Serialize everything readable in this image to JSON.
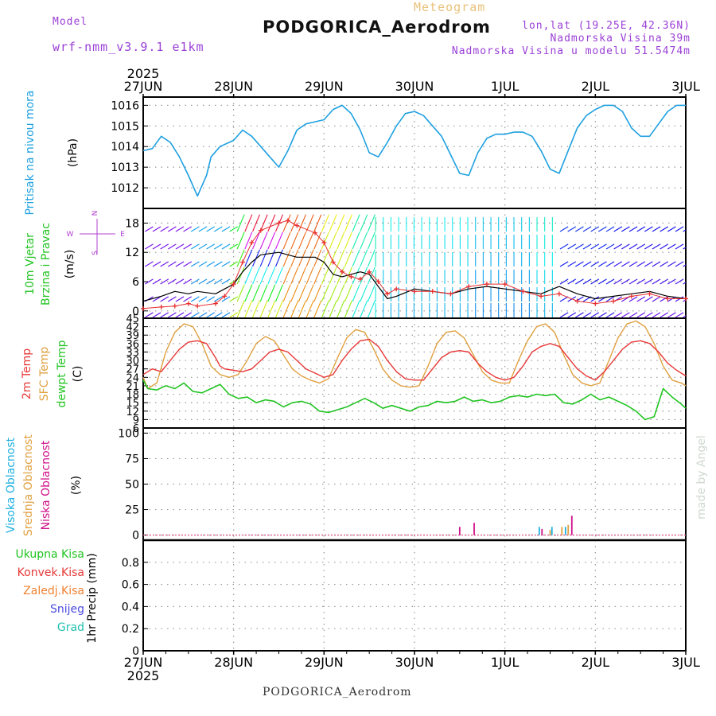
{
  "header": {
    "model_label": "Model",
    "model_value": "wrf-nmm_v3.9.1 e1km",
    "meteogram_label": "Meteogram",
    "station_title": "PODGORICA_Aerodrom",
    "lonlat": "lon,lat (19.25E, 42.36N)",
    "elevation": "Nadmorska Visina 39m",
    "model_elevation": "Nadmorska Visina u modelu 51.5474m",
    "year": "2025",
    "footer": "PODGORICA_Aerodrom",
    "watermark": "made by Angel"
  },
  "colors": {
    "pressure": "#1ea0e0",
    "wind_speed": "#000000",
    "gust": "#e83030",
    "t2m": "#e83838",
    "sfc": "#e0a040",
    "dewpt": "#22c422",
    "clouds_high": "#1eb0e0",
    "clouds_mid": "#e0a040",
    "clouds_low": "#d0108a",
    "grid": "#9a9a9a"
  },
  "chart_data": [
    {
      "type": "line",
      "title": "",
      "x_ticks": [
        "27JUN",
        "28JUN",
        "29JUN",
        "30JUN",
        "1JUL",
        "2JUL",
        "3JUL"
      ],
      "ylabel": [
        "Pritisak na nivou mora",
        "(hPa)"
      ],
      "ylim": [
        1011,
        1016.4
      ],
      "yticks": [
        1012,
        1013,
        1014,
        1015,
        1016
      ],
      "series": [
        {
          "key": "pressure",
          "x": [
            0,
            0.1,
            0.2,
            0.3,
            0.4,
            0.5,
            0.6,
            0.7,
            0.75,
            0.85,
            0.95,
            1.0,
            1.1,
            1.2,
            1.3,
            1.4,
            1.5,
            1.6,
            1.7,
            1.8,
            1.9,
            2.0,
            2.1,
            2.2,
            2.3,
            2.4,
            2.5,
            2.6,
            2.7,
            2.8,
            2.9,
            3.0,
            3.1,
            3.2,
            3.3,
            3.4,
            3.5,
            3.6,
            3.7,
            3.8,
            3.9,
            4.0,
            4.1,
            4.2,
            4.3,
            4.4,
            4.5,
            4.6,
            4.7,
            4.8,
            4.9,
            5.0,
            5.1,
            5.2,
            5.3,
            5.4,
            5.5,
            5.6,
            5.7,
            5.8,
            5.9,
            6.0
          ],
          "values": [
            1013.8,
            1013.9,
            1014.5,
            1014.2,
            1013.5,
            1012.6,
            1011.6,
            1012.6,
            1013.5,
            1014.0,
            1014.2,
            1014.3,
            1014.8,
            1014.5,
            1014.0,
            1013.5,
            1013.0,
            1013.8,
            1014.8,
            1015.1,
            1015.2,
            1015.3,
            1015.8,
            1016.0,
            1015.6,
            1014.8,
            1013.7,
            1013.5,
            1014.2,
            1015.0,
            1015.6,
            1015.7,
            1015.5,
            1015.0,
            1014.5,
            1013.6,
            1012.7,
            1012.6,
            1013.7,
            1014.4,
            1014.6,
            1014.6,
            1014.7,
            1014.7,
            1014.5,
            1013.8,
            1012.9,
            1012.7,
            1013.8,
            1014.9,
            1015.5,
            1015.8,
            1016.0,
            1016.0,
            1015.7,
            1014.9,
            1014.5,
            1014.5,
            1015.1,
            1015.7,
            1016.0,
            1016.0
          ]
        }
      ]
    },
    {
      "type": "line",
      "title": "",
      "x_ticks": [
        "27JUN",
        "28JUN",
        "29JUN",
        "30JUN",
        "1JUL",
        "2JUL",
        "3JUL"
      ],
      "ylabel": [
        "10m Vjetar",
        "Brzina i Pravac",
        "(m/s)"
      ],
      "compass": [
        "N",
        "W",
        "E",
        "S"
      ],
      "ylim": [
        -1.5,
        21
      ],
      "yticks": [
        0,
        6,
        12,
        18
      ],
      "series": [
        {
          "key": "wind_speed",
          "x": [
            0,
            0.2,
            0.35,
            0.5,
            0.6,
            0.8,
            0.9,
            1.0,
            1.1,
            1.2,
            1.3,
            1.5,
            1.6,
            1.7,
            1.9,
            2.0,
            2.1,
            2.2,
            2.3,
            2.4,
            2.5,
            2.6,
            2.7,
            2.8,
            3.0,
            3.2,
            3.4,
            3.6,
            3.8,
            4.0,
            4.2,
            4.4,
            4.6,
            4.8,
            5.0,
            5.2,
            5.4,
            5.6,
            5.8,
            6.0
          ],
          "values": [
            2.0,
            3.0,
            4.0,
            3.5,
            4.0,
            3.5,
            4.5,
            5.5,
            8.0,
            10.0,
            11.5,
            12.0,
            11.5,
            11.0,
            11.0,
            10.0,
            7.5,
            7.0,
            7.5,
            8.0,
            7.5,
            5.0,
            2.5,
            3.0,
            4.5,
            4.0,
            3.5,
            4.5,
            5.0,
            4.5,
            4.0,
            3.5,
            5.0,
            3.5,
            2.5,
            3.0,
            3.5,
            4.0,
            3.0,
            2.5
          ]
        },
        {
          "key": "gust",
          "x": [
            0,
            0.2,
            0.35,
            0.5,
            0.6,
            0.8,
            0.9,
            1.0,
            1.1,
            1.2,
            1.3,
            1.5,
            1.6,
            1.7,
            1.9,
            2.0,
            2.1,
            2.2,
            2.3,
            2.4,
            2.5,
            2.6,
            2.7,
            2.8,
            3.0,
            3.2,
            3.4,
            3.6,
            3.8,
            4.0,
            4.2,
            4.4,
            4.6,
            4.8,
            5.0,
            5.2,
            5.4,
            5.6,
            5.8,
            6.0
          ],
          "values": [
            0.5,
            0.8,
            1.0,
            1.5,
            1.0,
            1.5,
            3.0,
            5.5,
            10.0,
            14.0,
            16.5,
            18.0,
            18.5,
            17.5,
            16.0,
            14.0,
            10.0,
            8.0,
            7.0,
            6.5,
            8.0,
            6.0,
            3.5,
            4.5,
            4.0,
            4.0,
            3.5,
            5.0,
            5.5,
            5.5,
            4.0,
            3.0,
            3.5,
            2.0,
            1.5,
            2.0,
            3.0,
            3.5,
            2.5,
            2.5
          ]
        }
      ]
    },
    {
      "type": "line",
      "title": "",
      "x_ticks": [
        "27JUN",
        "28JUN",
        "29JUN",
        "30JUN",
        "1JUL",
        "2JUL",
        "3JUL"
      ],
      "ylabel": [
        "2m Temp",
        "SFC Temp",
        "dewpt Temp",
        "(C)"
      ],
      "ylim": [
        6,
        45
      ],
      "yticks": [
        6,
        9,
        12,
        15,
        18,
        21,
        24,
        27,
        30,
        33,
        36,
        39,
        42,
        45
      ],
      "series": [
        {
          "key": "t2m",
          "x": [
            0,
            0.1,
            0.2,
            0.3,
            0.4,
            0.5,
            0.6,
            0.7,
            0.8,
            0.85,
            0.9,
            1.0,
            1.1,
            1.2,
            1.3,
            1.4,
            1.5,
            1.6,
            1.7,
            1.8,
            1.9,
            2.0,
            2.1,
            2.2,
            2.3,
            2.4,
            2.5,
            2.6,
            2.7,
            2.8,
            2.9,
            3.0,
            3.1,
            3.2,
            3.3,
            3.4,
            3.5,
            3.6,
            3.7,
            3.8,
            3.9,
            4.0,
            4.1,
            4.2,
            4.3,
            4.4,
            4.5,
            4.6,
            4.7,
            4.8,
            4.9,
            5.0,
            5.1,
            5.2,
            5.3,
            5.4,
            5.5,
            5.6,
            5.7,
            5.8,
            5.9,
            6.0
          ],
          "values": [
            25,
            27,
            26,
            30,
            34,
            36.5,
            37,
            36,
            31,
            28,
            27,
            26.5,
            26,
            27,
            30,
            33,
            34,
            33,
            30,
            27,
            25.5,
            24,
            25,
            30,
            34,
            37,
            37.5,
            35,
            30,
            26,
            23.5,
            23,
            23,
            27,
            31,
            33,
            33.5,
            33,
            29,
            26,
            24,
            23,
            24,
            28,
            33,
            35,
            36,
            35,
            31,
            27,
            24.5,
            23,
            26,
            30,
            34,
            36.5,
            37,
            36,
            33,
            29,
            26.5,
            24.5
          ]
        },
        {
          "key": "sfc",
          "x": [
            0,
            0.05,
            0.15,
            0.25,
            0.35,
            0.45,
            0.55,
            0.65,
            0.75,
            0.85,
            0.95,
            1.05,
            1.15,
            1.25,
            1.35,
            1.45,
            1.55,
            1.65,
            1.75,
            1.85,
            1.95,
            2.05,
            2.15,
            2.25,
            2.35,
            2.45,
            2.55,
            2.65,
            2.75,
            2.85,
            2.95,
            3.05,
            3.15,
            3.25,
            3.35,
            3.45,
            3.55,
            3.65,
            3.75,
            3.85,
            3.95,
            4.05,
            4.15,
            4.25,
            4.35,
            4.45,
            4.55,
            4.65,
            4.75,
            4.85,
            4.95,
            5.05,
            5.15,
            5.25,
            5.35,
            5.45,
            5.55,
            5.65,
            5.75,
            5.85,
            5.95,
            6.0
          ],
          "values": [
            24,
            20,
            22,
            33,
            40,
            43,
            42,
            36,
            28,
            25,
            24,
            25,
            30,
            36,
            38.5,
            37,
            32,
            27,
            24.5,
            23,
            22,
            23.5,
            31,
            38,
            41,
            40,
            34,
            27,
            23,
            21,
            20.5,
            21,
            28,
            36,
            40,
            40.5,
            38,
            32,
            26,
            23,
            22,
            22,
            30,
            37,
            42,
            43,
            40,
            32,
            25,
            22,
            21,
            22,
            30,
            38,
            43,
            44,
            42,
            36,
            28,
            23,
            22,
            21
          ]
        },
        {
          "key": "dewpt",
          "x": [
            0,
            0.05,
            0.15,
            0.25,
            0.35,
            0.45,
            0.55,
            0.65,
            0.75,
            0.85,
            0.95,
            1.05,
            1.15,
            1.25,
            1.35,
            1.45,
            1.55,
            1.65,
            1.75,
            1.85,
            1.95,
            2.05,
            2.15,
            2.25,
            2.35,
            2.45,
            2.55,
            2.65,
            2.75,
            2.85,
            2.95,
            3.05,
            3.15,
            3.25,
            3.35,
            3.45,
            3.55,
            3.65,
            3.75,
            3.85,
            3.95,
            4.05,
            4.15,
            4.25,
            4.35,
            4.45,
            4.55,
            4.65,
            4.75,
            4.85,
            4.95,
            5.05,
            5.15,
            5.25,
            5.35,
            5.45,
            5.55,
            5.65,
            5.75,
            5.85,
            5.95,
            6.0
          ],
          "values": [
            23,
            20,
            19.5,
            21,
            20,
            22,
            19,
            18.5,
            20,
            21.5,
            18,
            16.5,
            17,
            15,
            16,
            15.5,
            13.5,
            15,
            15.5,
            14.5,
            12,
            11.5,
            12.5,
            13.5,
            15,
            16.5,
            15,
            13,
            14,
            13,
            12,
            13.5,
            14,
            15.5,
            15,
            15.5,
            17,
            15.5,
            16,
            15,
            15.5,
            17,
            17.5,
            17,
            18,
            17.5,
            18,
            15,
            14.5,
            16,
            18,
            16,
            17,
            15.5,
            14,
            12,
            9,
            10,
            20,
            17,
            14.5,
            13
          ]
        }
      ]
    },
    {
      "type": "bar",
      "title": "",
      "x_ticks": [
        "27JUN",
        "28JUN",
        "29JUN",
        "30JUN",
        "1JUL",
        "2JUL",
        "3JUL"
      ],
      "ylabel": [
        "Visoka Oblacnost",
        "Srednja Oblacnost",
        "Niska Oblacnost",
        "(%)"
      ],
      "ylim": [
        -5,
        105
      ],
      "yticks": [
        0,
        25,
        50,
        75,
        100
      ],
      "series": [
        {
          "key": "clouds_high",
          "x": [
            4.38,
            4.52,
            4.67
          ],
          "values": [
            8,
            8,
            8
          ]
        },
        {
          "key": "clouds_mid",
          "x": [
            4.5,
            4.63,
            4.7
          ],
          "values": [
            5,
            8,
            10
          ]
        },
        {
          "key": "clouds_low",
          "x": [
            3.5,
            3.66,
            4.41,
            4.74
          ],
          "values": [
            8,
            12,
            6,
            19
          ]
        }
      ]
    },
    {
      "type": "bar",
      "title": "",
      "x_ticks": [
        "27JUN",
        "28JUN",
        "29JUN",
        "30JUN",
        "1JUL",
        "2JUL",
        "3JUL"
      ],
      "ylabel": "1hr Precip (mm)",
      "legend": [
        "Ukupna Kisa",
        "Konvek.Kisa",
        "Zaledj.Kisa",
        "Snijeg",
        "Grad"
      ],
      "legend_colors": [
        "#22c422",
        "#e83838",
        "#f08030",
        "#4a4adf",
        "#20c0b0"
      ],
      "ylim": [
        0,
        1
      ],
      "yticks": [
        0,
        0.2,
        0.4,
        0.6,
        0.8
      ],
      "series": [
        {
          "name": "Ukupna Kisa",
          "x": [],
          "values": []
        }
      ]
    }
  ]
}
